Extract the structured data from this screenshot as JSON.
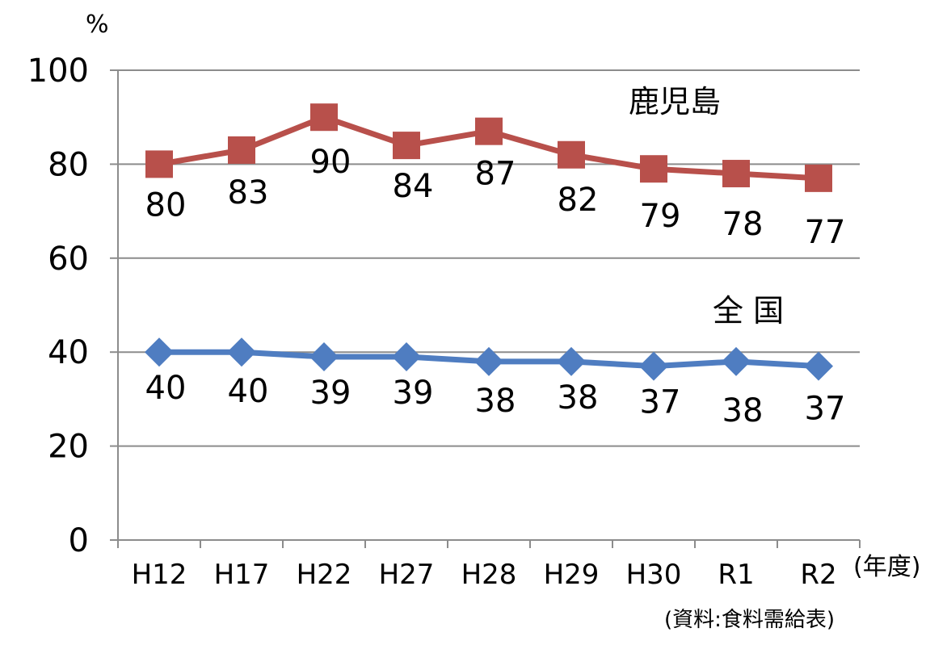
{
  "chart_data": {
    "type": "line",
    "categories": [
      "H12",
      "H17",
      "H22",
      "H27",
      "H28",
      "H29",
      "H30",
      "R1",
      "R2"
    ],
    "series": [
      {
        "name": "鹿児島",
        "values": [
          80,
          83,
          90,
          84,
          87,
          82,
          79,
          78,
          77
        ],
        "color": "#b8504b",
        "marker": "square"
      },
      {
        "name": "全 国",
        "values": [
          40,
          40,
          39,
          39,
          38,
          38,
          37,
          38,
          37
        ],
        "color": "#4f7dc1",
        "marker": "diamond"
      }
    ],
    "ylim": [
      0,
      100
    ],
    "yticks": [
      0,
      20,
      40,
      60,
      80,
      100
    ],
    "ylabel": "%",
    "xlabel": "(年度)",
    "grid": true,
    "source_note": "(資料:食料需給表)"
  }
}
